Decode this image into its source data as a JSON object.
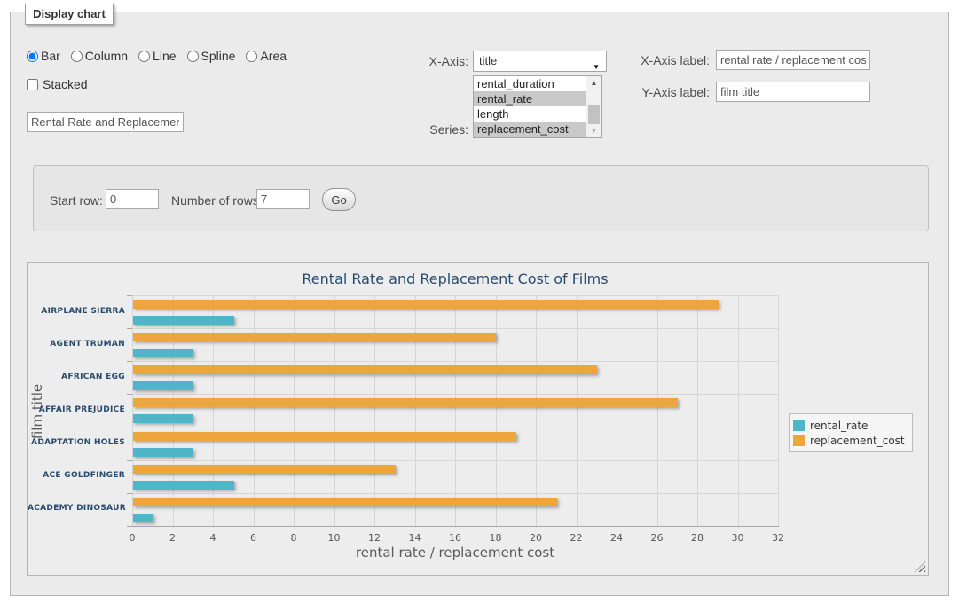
{
  "form": {
    "legend": "Display chart",
    "chart_types": [
      {
        "label": "Bar",
        "selected": true
      },
      {
        "label": "Column",
        "selected": false
      },
      {
        "label": "Line",
        "selected": false
      },
      {
        "label": "Spline",
        "selected": false
      },
      {
        "label": "Area",
        "selected": false
      }
    ],
    "stacked_label": "Stacked",
    "stacked_checked": false,
    "chart_title_value": "Rental Rate and Replacement Cost of Films",
    "x_axis_select": {
      "label": "X-Axis:",
      "value": "title"
    },
    "series_select": {
      "label": "Series:",
      "options": [
        {
          "label": "rental_duration",
          "selected": false
        },
        {
          "label": "rental_rate",
          "selected": true
        },
        {
          "label": "length",
          "selected": false
        },
        {
          "label": "replacement_cost",
          "selected": true
        }
      ]
    },
    "x_axis_label_field": {
      "label": "X-Axis label:",
      "value": "rental rate / replacement cost"
    },
    "y_axis_label_field": {
      "label": "Y-Axis label:",
      "value": "film title"
    }
  },
  "rows_panel": {
    "start_row_label": "Start row:",
    "start_row_value": "0",
    "num_rows_label": "Number of rows:",
    "num_rows_value": "7",
    "go_label": "Go"
  },
  "chart_data": {
    "type": "bar",
    "title": "Rental Rate and Replacement Cost of Films",
    "categories": [
      "AIRPLANE SIERRA",
      "AGENT TRUMAN",
      "AFRICAN EGG",
      "AFFAIR PREJUDICE",
      "ADAPTATION HOLES",
      "ACE GOLDFINGER",
      "ACADEMY DINOSAUR"
    ],
    "series": [
      {
        "name": "rental_rate",
        "color": "#4FB6C7",
        "values": [
          4.99,
          2.99,
          2.99,
          2.99,
          2.99,
          4.99,
          0.99
        ]
      },
      {
        "name": "replacement_cost",
        "color": "#EDA63C",
        "values": [
          28.99,
          17.99,
          22.99,
          26.99,
          18.99,
          12.99,
          20.99
        ]
      }
    ],
    "xlabel": "rental rate / replacement cost",
    "ylabel": "film title",
    "xlim": [
      0,
      32
    ],
    "xticks": [
      0,
      2,
      4,
      6,
      8,
      10,
      12,
      14,
      16,
      18,
      20,
      22,
      24,
      26,
      28,
      30,
      32
    ],
    "grid": true,
    "legend_position": "right"
  }
}
